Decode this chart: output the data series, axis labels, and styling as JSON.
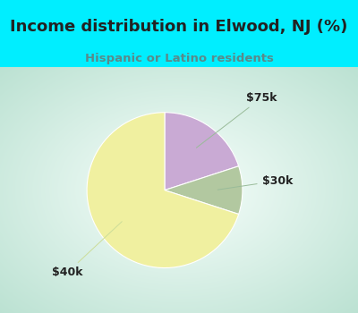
{
  "title": "Income distribution in Elwood, NJ (%)",
  "subtitle": "Hispanic or Latino residents",
  "slices": [
    {
      "label": "$75k",
      "value": 20,
      "color": "#c9aad4"
    },
    {
      "label": "$30k",
      "value": 10,
      "color": "#b2c8a0"
    },
    {
      "label": "$40k",
      "value": 70,
      "color": "#f0f0a0"
    }
  ],
  "title_color": "#222222",
  "subtitle_color": "#5a8a8a",
  "bg_cyan": "#00eeff",
  "chart_bg_left": "#c8e8dc",
  "chart_bg_right": "#e0f0f8",
  "chart_bg_center": "#f8fffe",
  "label_color": "#222222",
  "line_color": "#aaccaa",
  "startangle": 90,
  "title_fontsize": 13,
  "subtitle_fontsize": 9.5,
  "annotation_fontsize": 9
}
